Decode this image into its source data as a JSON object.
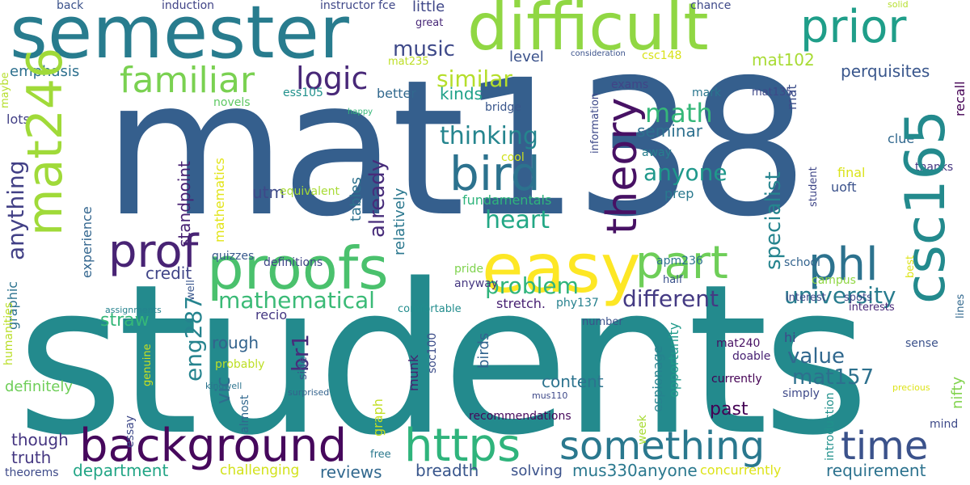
{
  "words": [
    {
      "text": "students",
      "color": "#238a8d"
    },
    {
      "text": "mat138",
      "color": "#355f8d"
    },
    {
      "text": "semester",
      "color": "#287c8e"
    },
    {
      "text": "difficult",
      "color": "#90d743"
    },
    {
      "text": "background",
      "color": "#46085c"
    },
    {
      "text": "https",
      "color": "#2fb47c"
    },
    {
      "text": "something",
      "color": "#2a788e"
    },
    {
      "text": "time",
      "color": "#3b528b"
    },
    {
      "text": "mat246",
      "color": "#a0da39"
    },
    {
      "text": "csc165",
      "color": "#238a8d"
    },
    {
      "text": "proofs",
      "color": "#4ac16d"
    },
    {
      "text": "easy",
      "color": "#fde725"
    },
    {
      "text": "part",
      "color": "#6ece58"
    },
    {
      "text": "prof",
      "color": "#482374"
    },
    {
      "text": "phl",
      "color": "#2c728e"
    },
    {
      "text": "bird",
      "color": "#2c728e"
    },
    {
      "text": "theory",
      "color": "#471164"
    },
    {
      "text": "prior",
      "color": "#1f9e89"
    },
    {
      "text": "familiar",
      "color": "#7ad151"
    },
    {
      "text": "logic",
      "color": "#482878"
    },
    {
      "text": "music",
      "color": "#3e4989"
    },
    {
      "text": "similar",
      "color": "#b5de2b"
    },
    {
      "text": "thinking",
      "color": "#25858e"
    },
    {
      "text": "math",
      "color": "#35b779"
    },
    {
      "text": "anyone",
      "color": "#1f988b"
    },
    {
      "text": "heart",
      "color": "#22a785"
    },
    {
      "text": "already",
      "color": "#472c7a"
    },
    {
      "text": "specialist",
      "color": "#25848e"
    },
    {
      "text": "university",
      "color": "#287c8e"
    },
    {
      "text": "problem",
      "color": "#2fb47c"
    },
    {
      "text": "mathematical",
      "color": "#3aba76"
    },
    {
      "text": "different",
      "color": "#443a83"
    },
    {
      "text": "value",
      "color": "#31688e"
    },
    {
      "text": "mat157",
      "color": "#2d708e"
    },
    {
      "text": "eng287",
      "color": "#25838e"
    },
    {
      "text": "anything",
      "color": "#424086"
    },
    {
      "text": "br1",
      "color": "#472d7b"
    },
    {
      "text": "vic",
      "color": "#2e6d8e"
    },
    {
      "text": "rough",
      "color": "#33638d"
    },
    {
      "text": "straw",
      "color": "#35b779"
    },
    {
      "text": "content",
      "color": "#2c738e"
    },
    {
      "text": "past",
      "color": "#440154"
    },
    {
      "text": "though",
      "color": "#453581"
    },
    {
      "text": "truth",
      "color": "#453882"
    },
    {
      "text": "department",
      "color": "#21a585"
    },
    {
      "text": "reviews",
      "color": "#31688e"
    },
    {
      "text": "breadth",
      "color": "#39568c"
    },
    {
      "text": "challenging",
      "color": "#d2e21b"
    },
    {
      "text": "solving",
      "color": "#3b528b"
    },
    {
      "text": "mus330anyone",
      "color": "#2a788e"
    },
    {
      "text": "requirement",
      "color": "#2c728e"
    },
    {
      "text": "concurrently",
      "color": "#dde318"
    },
    {
      "text": "theorems",
      "color": "#3e4a89"
    },
    {
      "text": "utm",
      "color": "#3e4989"
    },
    {
      "text": "standpoint",
      "color": "#482173"
    },
    {
      "text": "tables",
      "color": "#2d718e"
    },
    {
      "text": "relatively",
      "color": "#2a778e"
    },
    {
      "text": "fundamentals",
      "color": "#2fb47c"
    },
    {
      "text": "level",
      "color": "#3b528b"
    },
    {
      "text": "mat102",
      "color": "#a8db34"
    },
    {
      "text": "perquisites",
      "color": "#39568c"
    },
    {
      "text": "mat135",
      "color": "#3f4889"
    },
    {
      "text": "csc148",
      "color": "#d8e219"
    },
    {
      "text": "mat235",
      "color": "#bddf26"
    },
    {
      "text": "ess105",
      "color": "#21918c"
    },
    {
      "text": "emphasis",
      "color": "#2d708e"
    },
    {
      "text": "novels",
      "color": "#5ec962"
    },
    {
      "text": "lots",
      "color": "#424086"
    },
    {
      "text": "better",
      "color": "#31688e"
    },
    {
      "text": "kinds",
      "color": "#1fa188"
    },
    {
      "text": "bridge",
      "color": "#39568c"
    },
    {
      "text": "mark",
      "color": "#2a768e"
    },
    {
      "text": "exams",
      "color": "#414487"
    },
    {
      "text": "mat",
      "color": "#3d4e8a"
    },
    {
      "text": "recall",
      "color": "#440154"
    },
    {
      "text": "information",
      "color": "#3e4989"
    },
    {
      "text": "cool",
      "color": "#d0e11c"
    },
    {
      "text": "seminar",
      "color": "#2d708e"
    },
    {
      "text": "away",
      "color": "#277f8e"
    },
    {
      "text": "final",
      "color": "#dae319"
    },
    {
      "text": "clue",
      "color": "#31688e"
    },
    {
      "text": "thanks",
      "color": "#453581"
    },
    {
      "text": "uoft",
      "color": "#3b528b"
    },
    {
      "text": "prep",
      "color": "#29798e"
    },
    {
      "text": "student",
      "color": "#3f4788"
    },
    {
      "text": "mathematics",
      "color": "#e2e418"
    },
    {
      "text": "experience",
      "color": "#32658e"
    },
    {
      "text": "equivalent",
      "color": "#a8db34"
    },
    {
      "text": "quizzes",
      "color": "#38598c"
    },
    {
      "text": "definitions",
      "color": "#404688"
    },
    {
      "text": "pride",
      "color": "#7fd34e"
    },
    {
      "text": "anyway",
      "color": "#453781"
    },
    {
      "text": "comfortable",
      "color": "#228d8d"
    },
    {
      "text": "apm236",
      "color": "#2c728e"
    },
    {
      "text": "school",
      "color": "#33638d"
    },
    {
      "text": "campus",
      "color": "#90d743"
    },
    {
      "text": "interest",
      "color": "#3e4989"
    },
    {
      "text": "spots",
      "color": "#3f4889"
    },
    {
      "text": "half",
      "color": "#3b528b"
    },
    {
      "text": "credit",
      "color": "#404588"
    },
    {
      "text": "stretch.",
      "color": "#482173"
    },
    {
      "text": "phy137",
      "color": "#26818e"
    },
    {
      "text": "recio",
      "color": "#453882"
    },
    {
      "text": "number",
      "color": "#3b528b"
    },
    {
      "text": "birds",
      "color": "#32648e"
    },
    {
      "text": "mat240",
      "color": "#471063"
    },
    {
      "text": "hi",
      "color": "#3e4989"
    },
    {
      "text": "doable",
      "color": "#482173"
    },
    {
      "text": "sense",
      "color": "#3b528b"
    },
    {
      "text": "interests",
      "color": "#482878"
    },
    {
      "text": "best",
      "color": "#dde318"
    },
    {
      "text": "lines",
      "color": "#31688e"
    },
    {
      "text": "nifty",
      "color": "#81d34d"
    },
    {
      "text": "graphic",
      "color": "#2c728e"
    },
    {
      "text": "humanities",
      "color": "#bade28"
    },
    {
      "text": "difficulty",
      "color": "#3b528b"
    },
    {
      "text": "axioms",
      "color": "#3f4889"
    },
    {
      "text": "assignments",
      "color": "#25838e"
    },
    {
      "text": "hps",
      "color": "#2ab07f"
    },
    {
      "text": "well",
      "color": "#39568c"
    },
    {
      "text": "genuine",
      "color": "#cae11f"
    },
    {
      "text": "probably",
      "color": "#bddf26"
    },
    {
      "text": "side",
      "color": "#3b528b"
    },
    {
      "text": "soc100",
      "color": "#3d4e8a"
    },
    {
      "text": "munk",
      "color": "#481f70"
    },
    {
      "text": "graph",
      "color": "#c2df23"
    },
    {
      "text": "definitely",
      "color": "#6ece58"
    },
    {
      "text": "almost",
      "color": "#31688e"
    },
    {
      "text": "kingwell",
      "color": "#2c738e"
    },
    {
      "text": "essay",
      "color": "#3e4989"
    },
    {
      "text": "surprised",
      "color": "#33638d"
    },
    {
      "text": "mus110",
      "color": "#3e4989"
    },
    {
      "text": "recommendations",
      "color": "#46085c"
    },
    {
      "text": "free",
      "color": "#2a788e"
    },
    {
      "text": "week",
      "color": "#a8db34"
    },
    {
      "text": "espionage",
      "color": "#26828e"
    },
    {
      "text": "opportunity",
      "color": "#1f9a8a"
    },
    {
      "text": "currently",
      "color": "#440154"
    },
    {
      "text": "simply",
      "color": "#3e4989"
    },
    {
      "text": "introduction",
      "color": "#21918c"
    },
    {
      "text": "precious",
      "color": "#dde318"
    },
    {
      "text": "mind",
      "color": "#3e4a89"
    },
    {
      "text": "back",
      "color": "#3b528b"
    },
    {
      "text": "induction",
      "color": "#414487"
    },
    {
      "text": "instructor fce",
      "color": "#3f4788"
    },
    {
      "text": "little",
      "color": "#3f4788"
    },
    {
      "text": "great",
      "color": "#482878"
    },
    {
      "text": "chance",
      "color": "#3e4989"
    },
    {
      "text": "solid",
      "color": "#b5de2b"
    },
    {
      "text": "consideration",
      "color": "#3b528b"
    },
    {
      "text": "happy",
      "color": "#35b779"
    },
    {
      "text": "maybe",
      "color": "#b5de2b"
    },
    {
      "text": "look",
      "color": "#8bd646"
    }
  ]
}
